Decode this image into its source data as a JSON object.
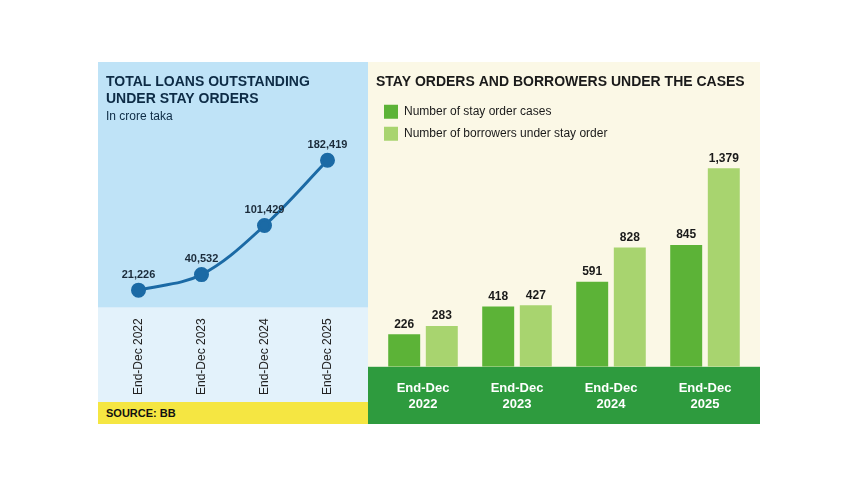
{
  "chart_data": [
    {
      "type": "line",
      "title": "TOTAL LOANS OUTSTANDING UNDER STAY ORDERS",
      "subtitle": "In crore taka",
      "source": "SOURCE: BB",
      "categories": [
        "End-Dec 2022",
        "End-Dec 2023",
        "End-Dec 2024",
        "End-Dec 2025"
      ],
      "values": [
        21226,
        40532,
        101429,
        182419
      ],
      "value_labels": [
        "21,226",
        "40,532",
        "101,429",
        "182,419"
      ],
      "color": "#1b6aa5",
      "marker": "circle",
      "ylim": [
        0,
        210000
      ],
      "grid": false,
      "data_labels": true,
      "tick_labels": "x"
    },
    {
      "type": "bar",
      "title": "STAY ORDERS AND BORROWERS UNDER THE CASES",
      "categories": [
        "End-Dec 2022",
        "End-Dec 2023",
        "End-Dec 2024",
        "End-Dec 2025"
      ],
      "series": [
        {
          "name": "Number of stay order cases",
          "color": "#5cb337",
          "values": [
            226,
            418,
            591,
            845
          ],
          "value_labels": [
            "226",
            "418",
            "591",
            "845"
          ]
        },
        {
          "name": "Number of borrowers under stay order",
          "color": "#a8d46f",
          "values": [
            283,
            427,
            828,
            1379
          ],
          "value_labels": [
            "283",
            "427",
            "828",
            "1,379"
          ]
        }
      ],
      "ylim": [
        0,
        1500
      ],
      "grid": false,
      "legend": "top-left",
      "data_labels": true,
      "tick_labels": "x"
    }
  ]
}
